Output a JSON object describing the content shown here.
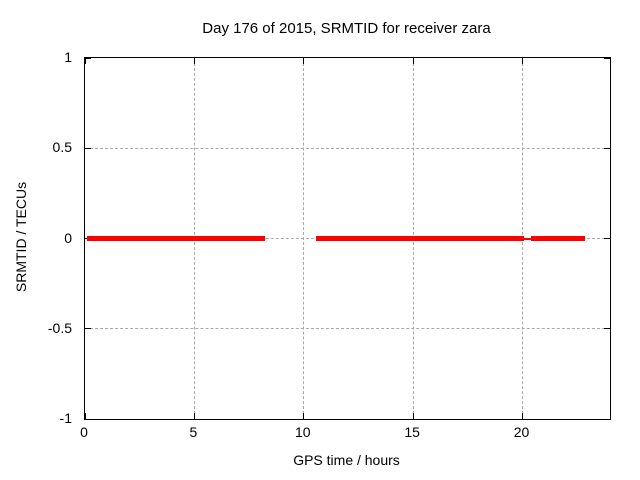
{
  "chart_data": {
    "type": "line",
    "title": "Day 176 of 2015, SRMTID for receiver zara",
    "xlabel": "GPS time / hours",
    "ylabel": "SRMTID / TECUs",
    "xlim": [
      0,
      24
    ],
    "ylim": [
      -1,
      1
    ],
    "grid": true,
    "legend": "none",
    "x_ticks": [
      {
        "value": 0,
        "label": "0"
      },
      {
        "value": 5,
        "label": "5"
      },
      {
        "value": 10,
        "label": "10"
      },
      {
        "value": 15,
        "label": "15"
      },
      {
        "value": 20,
        "label": "20"
      }
    ],
    "y_ticks": [
      {
        "value": 1,
        "label": "1"
      },
      {
        "value": 0.5,
        "label": "0.5"
      },
      {
        "value": 0,
        "label": "0"
      },
      {
        "value": -0.5,
        "label": "-0.5"
      },
      {
        "value": -1,
        "label": "-1"
      }
    ],
    "series": [
      {
        "name": "SRMTID",
        "color": "#ff0000",
        "segments": [
          {
            "x1": 0.1,
            "x2": 8.23,
            "y": 0,
            "thickness": 5
          },
          {
            "x1": 10.55,
            "x2": 20.05,
            "y": 0,
            "thickness": 5
          },
          {
            "x1": 20.05,
            "x2": 20.4,
            "y": 0,
            "thickness": 2
          },
          {
            "x1": 20.4,
            "x2": 22.85,
            "y": 0,
            "thickness": 5
          }
        ]
      }
    ]
  },
  "colors": {
    "line": "#ff0000",
    "grid": "#aaaaaa",
    "border": "#000000",
    "background": "#ffffff"
  }
}
